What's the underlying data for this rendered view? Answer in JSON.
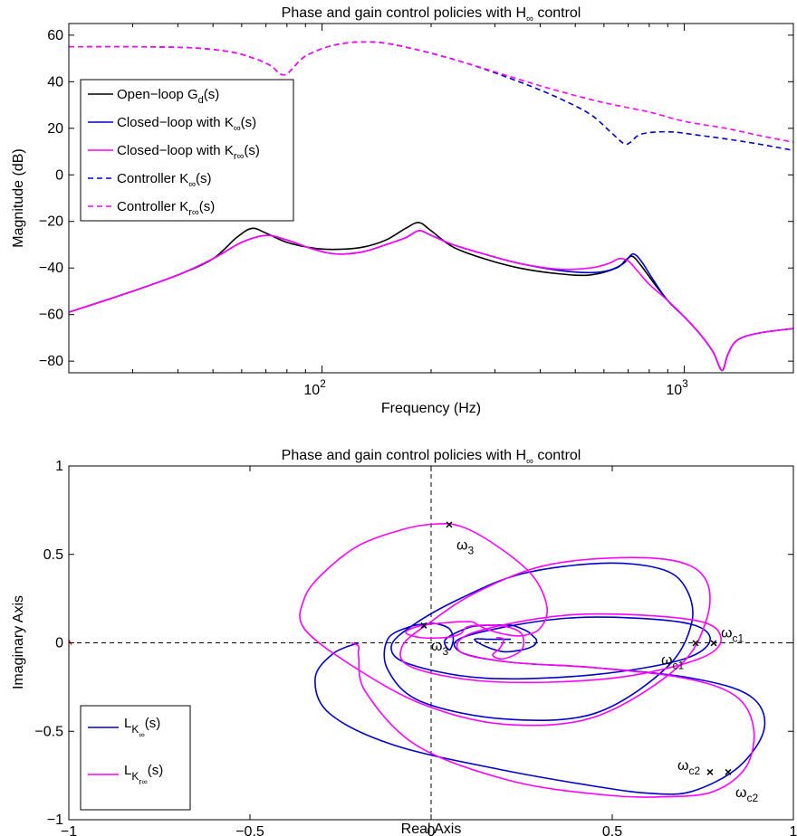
{
  "chart_data": [
    {
      "type": "line",
      "title": "Phase and gain control policies with H∞ control",
      "xlabel": "Frequency (Hz)",
      "ylabel": "Magnitude (dB)",
      "xscale": "log",
      "xlim": [
        20,
        2000
      ],
      "ylim": [
        -85,
        65
      ],
      "yticks": [
        60,
        40,
        20,
        0,
        -20,
        -40,
        -60,
        -80
      ],
      "ytick_labels": [
        "60",
        "40",
        "20",
        "0",
        "−20",
        "−40",
        "−60",
        "−80"
      ],
      "xticks": [
        100,
        1000
      ],
      "xtick_labels": [
        {
          "base": "10",
          "exp": "2"
        },
        {
          "base": "10",
          "exp": "3"
        }
      ],
      "legend_position": "top-left",
      "series": [
        {
          "name": "Open−loop G_d(s)",
          "legend": {
            "base": "Open−loop G",
            "sub": "d",
            "tail": "(s)"
          },
          "color": "#000000",
          "style": "solid",
          "x": [
            20,
            30,
            40,
            50,
            58,
            64,
            70,
            80,
            95,
            110,
            130,
            150,
            170,
            185,
            200,
            230,
            280,
            350,
            450,
            550,
            650,
            690,
            720,
            760,
            820,
            900,
            1000,
            1100,
            1200,
            1270,
            1320,
            1400,
            1600,
            2000
          ],
          "y": [
            -59,
            -50,
            -43,
            -36,
            -27,
            -23,
            -25,
            -29,
            -31.5,
            -32,
            -31,
            -28,
            -23,
            -20.5,
            -24,
            -31,
            -36,
            -40,
            -42.5,
            -43,
            -40,
            -36.5,
            -35,
            -39,
            -46,
            -54,
            -61,
            -68,
            -76,
            -84,
            -77,
            -71,
            -68,
            -66
          ]
        },
        {
          "name": "Closed−loop with K∞(s)",
          "legend": {
            "base": "Closed−loop with K",
            "sub": "∞",
            "tail": "(s)"
          },
          "color": "#0000cc",
          "style": "solid",
          "x": [
            20,
            30,
            40,
            50,
            60,
            70,
            80,
            95,
            110,
            130,
            150,
            170,
            185,
            200,
            230,
            280,
            350,
            450,
            550,
            620,
            680,
            720,
            760,
            820,
            900,
            1000,
            1100,
            1200,
            1270,
            1320,
            1400,
            1600,
            2000
          ],
          "y": [
            -59,
            -50,
            -43,
            -36,
            -29,
            -26,
            -28,
            -32,
            -34,
            -33,
            -30,
            -27,
            -24,
            -26,
            -30,
            -34,
            -38,
            -41,
            -42,
            -41,
            -38,
            -34,
            -37,
            -45,
            -54,
            -61,
            -68,
            -76,
            -84,
            -77,
            -71,
            -68,
            -66
          ]
        },
        {
          "name": "Closed−loop with Kr∞(s)",
          "legend": {
            "base": "Closed−loop with K",
            "sub": "r∞",
            "tail": "(s)"
          },
          "color": "#ff00ff",
          "style": "solid",
          "x": [
            20,
            30,
            40,
            50,
            60,
            70,
            80,
            95,
            110,
            130,
            150,
            170,
            185,
            200,
            230,
            280,
            350,
            450,
            550,
            620,
            660,
            700,
            740,
            800,
            900,
            1000,
            1100,
            1200,
            1270,
            1320,
            1400,
            1600,
            2000
          ],
          "y": [
            -59,
            -50,
            -43,
            -36,
            -29,
            -26,
            -28,
            -32,
            -34,
            -33,
            -30,
            -27,
            -24,
            -26,
            -30,
            -34,
            -38,
            -40.5,
            -40,
            -38,
            -36,
            -37,
            -41,
            -47,
            -54,
            -61,
            -68,
            -76,
            -84,
            -77,
            -71,
            -68,
            -66
          ]
        },
        {
          "name": "Controller K∞(s)",
          "legend": {
            "base": "Controller K",
            "sub": "∞",
            "tail": "(s)"
          },
          "color": "#0000cc",
          "style": "dashed",
          "x": [
            20,
            40,
            55,
            65,
            72,
            79,
            90,
            110,
            140,
            180,
            250,
            350,
            450,
            550,
            620,
            680,
            710,
            760,
            900,
            1100,
            1500,
            2000
          ],
          "y": [
            55,
            54.8,
            53,
            50,
            47,
            43,
            51,
            56,
            57,
            54,
            48,
            40,
            33,
            26,
            19,
            13.5,
            14,
            17.5,
            18.5,
            17,
            14,
            10.5
          ]
        },
        {
          "name": "Controller Kr∞(s)",
          "legend": {
            "base": "Controller K",
            "sub": "r∞",
            "tail": "(s)"
          },
          "color": "#ff00ff",
          "style": "dashed",
          "x": [
            20,
            40,
            55,
            65,
            72,
            79,
            90,
            110,
            140,
            180,
            250,
            350,
            450,
            600,
            800,
            1000,
            1300,
            1600,
            2000
          ],
          "y": [
            55,
            54.8,
            53,
            50,
            47,
            43,
            51,
            56,
            57,
            54,
            48,
            41,
            36,
            31,
            27,
            23,
            20,
            17,
            14
          ]
        }
      ]
    },
    {
      "type": "line",
      "title": "Phase and gain control policies with H∞ control",
      "xlabel": "Real Axis",
      "ylabel": "Imaginary Axis",
      "xlim": [
        -1,
        1
      ],
      "ylim": [
        -1,
        1
      ],
      "xticks": [
        -1,
        -0.5,
        0,
        0.5,
        1
      ],
      "xtick_labels": [
        "−1",
        "−0.5",
        "0",
        "0.5",
        "1"
      ],
      "yticks": [
        1,
        0.5,
        0,
        -0.5,
        -1
      ],
      "ytick_labels": [
        "1",
        "0.5",
        "0",
        "−0.5",
        "−1"
      ],
      "legend_position": "bottom-left",
      "series": [
        {
          "name": "LK∞(s)",
          "legend": {
            "base": "L",
            "sub": "K",
            "subsub": "∞",
            "tail": "(s)"
          },
          "color": "#0000cc",
          "style": "solid",
          "x": [
            -0.2,
            -0.27,
            -0.32,
            -0.28,
            -0.1,
            0.2,
            0.45,
            0.6,
            0.72,
            0.85,
            0.92,
            0.88,
            0.72,
            0.45,
            0.22,
            0.08,
            0.1,
            0.38,
            0.68,
            0.77,
            0.7,
            0.45,
            0.15,
            -0.06,
            -0.11,
            -0.05,
            0.08,
            0.25,
            0.47,
            0.63,
            0.7,
            0.72,
            0.65,
            0.45,
            0.2,
            -0.03,
            -0.12,
            -0.12,
            -0.06,
            0.0,
            0.03,
            0.05,
            0.06,
            0.06,
            0.05,
            0.04,
            0.11,
            0.18,
            0.22,
            0.25,
            0.27,
            0.28,
            0.29,
            0.29,
            0.28,
            0.25,
            0.2,
            0.15,
            0.12,
            0.16,
            0.2,
            0.22
          ],
          "y": [
            0.0,
            -0.06,
            -0.2,
            -0.4,
            -0.58,
            -0.72,
            -0.81,
            -0.85,
            -0.84,
            -0.7,
            -0.48,
            -0.3,
            -0.2,
            -0.14,
            -0.11,
            -0.05,
            0.04,
            0.14,
            0.12,
            0.03,
            -0.09,
            -0.18,
            -0.2,
            -0.12,
            -0.02,
            0.1,
            0.25,
            0.39,
            0.45,
            0.42,
            0.32,
            0.12,
            -0.14,
            -0.4,
            -0.43,
            -0.33,
            -0.15,
            0.02,
            0.09,
            0.11,
            0.1,
            0.08,
            0.04,
            0.0,
            -0.04,
            0.02,
            0.09,
            0.1,
            0.1,
            0.08,
            0.06,
            0.04,
            0.02,
            0.0,
            -0.02,
            -0.04,
            -0.05,
            -0.02,
            0.02,
            0.02,
            0.02,
            0.02
          ]
        },
        {
          "name": "LKr∞(s)",
          "legend": {
            "base": "L",
            "sub": "K",
            "subsub": "r∞",
            "tail": "(s)"
          },
          "color": "#ff00ff",
          "style": "solid",
          "x": [
            -0.22,
            -0.2,
            -0.2,
            -0.18,
            -0.04,
            0.22,
            0.48,
            0.65,
            0.78,
            0.87,
            0.89,
            0.84,
            0.7,
            0.45,
            0.22,
            0.08,
            0.12,
            0.4,
            0.72,
            0.8,
            0.74,
            0.5,
            0.17,
            -0.05,
            -0.08,
            0.0,
            0.12,
            0.3,
            0.5,
            0.68,
            0.76,
            0.76,
            0.68,
            0.45,
            0.2,
            -0.02,
            -0.21,
            -0.35,
            -0.35,
            -0.3,
            -0.2,
            -0.08,
            0.0,
            0.08,
            0.18,
            0.28,
            0.32,
            0.3,
            0.25,
            0.2,
            0.15,
            0.13,
            0.1,
            -0.02,
            -0.07,
            -0.03,
            0.04,
            0.08,
            0.1,
            0.15,
            0.21,
            0.25,
            0.25,
            0.2,
            0.17,
            0.19,
            0.2,
            0.18
          ],
          "y": [
            0.0,
            -0.02,
            -0.08,
            -0.28,
            -0.58,
            -0.78,
            -0.86,
            -0.87,
            -0.84,
            -0.7,
            -0.48,
            -0.3,
            -0.2,
            -0.14,
            -0.11,
            -0.05,
            0.06,
            0.16,
            0.13,
            0.03,
            -0.09,
            -0.2,
            -0.22,
            -0.14,
            -0.02,
            0.12,
            0.28,
            0.43,
            0.48,
            0.46,
            0.35,
            0.13,
            -0.14,
            -0.42,
            -0.46,
            -0.35,
            -0.14,
            0.08,
            0.25,
            0.39,
            0.55,
            0.64,
            0.67,
            0.66,
            0.55,
            0.38,
            0.2,
            0.08,
            0.04,
            0.05,
            0.08,
            0.1,
            0.12,
            0.1,
            0.06,
            0.03,
            0.03,
            0.05,
            0.09,
            0.1,
            0.09,
            0.05,
            -0.04,
            -0.09,
            -0.07,
            -0.03,
            0.02,
            0.03
          ]
        }
      ],
      "markers": [
        {
          "x": 0.05,
          "y": 0.67,
          "label": "ω",
          "sub": "3",
          "label_side": "below-right"
        },
        {
          "x": -0.02,
          "y": 0.1,
          "label": "ω",
          "sub": "3",
          "label_side": "below-right"
        },
        {
          "x": 0.73,
          "y": 0.0,
          "label": "ω",
          "sub": "c1",
          "label_side": "below-left"
        },
        {
          "x": 0.78,
          "y": 0.0,
          "label": "ω",
          "sub": "c1",
          "label_side": "above-right"
        },
        {
          "x": 0.77,
          "y": -0.73,
          "label": "ω",
          "sub": "c2",
          "label_side": "left"
        },
        {
          "x": 0.82,
          "y": -0.73,
          "label": "ω",
          "sub": "c2",
          "label_side": "below-right"
        }
      ],
      "grid_lines": "dashed crosshair at x=0 and y=0"
    }
  ]
}
